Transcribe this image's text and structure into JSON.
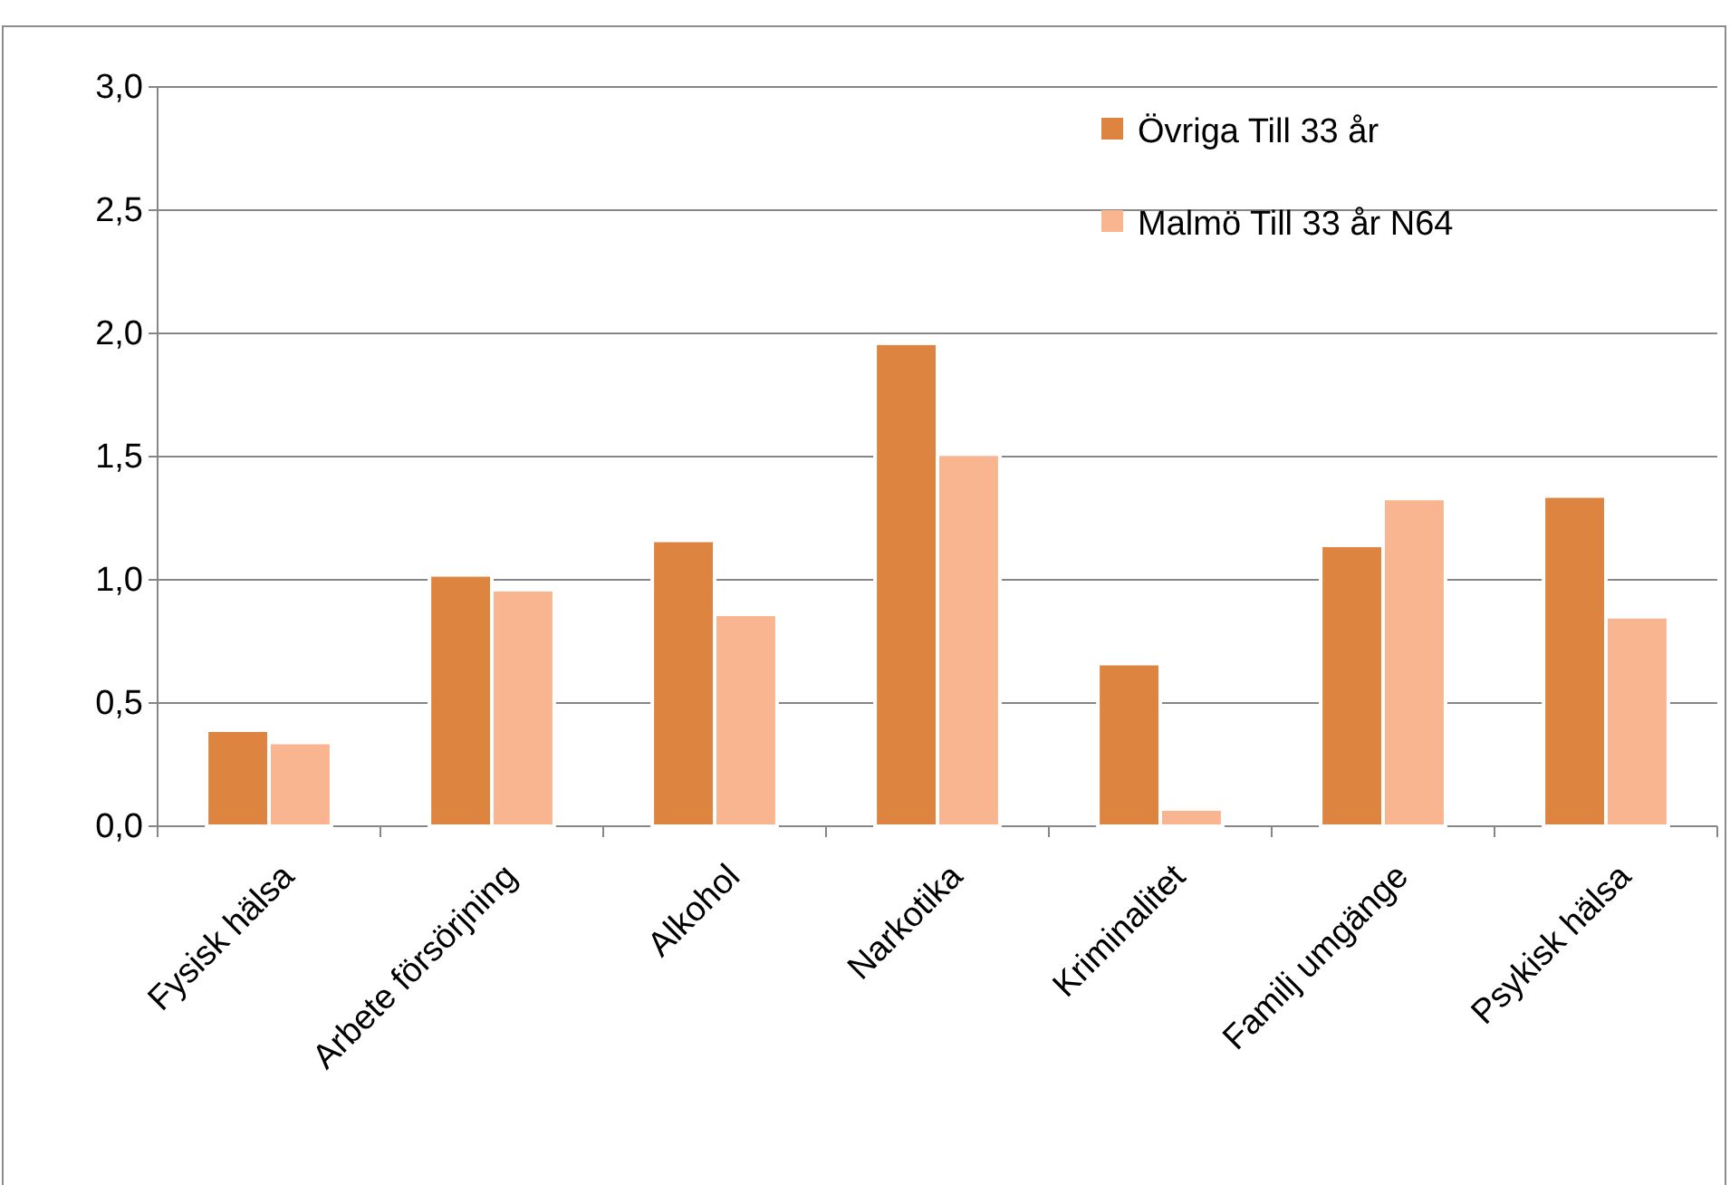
{
  "chart_data": {
    "type": "bar",
    "categories": [
      "Fysisk hälsa",
      "Arbete försörjning",
      "Alkohol",
      "Narkotika",
      "Kriminalitet",
      "Familj umgänge",
      "Psykisk hälsa"
    ],
    "series": [
      {
        "name": "Övriga Till 33 år",
        "color": "#dd8440",
        "values": [
          0.39,
          1.02,
          1.16,
          1.96,
          0.66,
          1.14,
          1.34
        ]
      },
      {
        "name": "Malmö Till 33 år N64",
        "color": "#f8b590",
        "values": [
          0.34,
          0.96,
          0.86,
          1.51,
          0.07,
          1.33,
          0.85
        ]
      }
    ],
    "ylim": [
      0,
      3
    ],
    "yticks": [
      {
        "value": 0,
        "label": "0,0"
      },
      {
        "value": 0.5,
        "label": "0,5"
      },
      {
        "value": 1,
        "label": "1,0"
      },
      {
        "value": 1.5,
        "label": "1,5"
      },
      {
        "value": 2,
        "label": "2,0"
      },
      {
        "value": 2.5,
        "label": "2,5"
      },
      {
        "value": 3,
        "label": "3,0"
      }
    ],
    "grid": "y",
    "legend": "top right"
  }
}
